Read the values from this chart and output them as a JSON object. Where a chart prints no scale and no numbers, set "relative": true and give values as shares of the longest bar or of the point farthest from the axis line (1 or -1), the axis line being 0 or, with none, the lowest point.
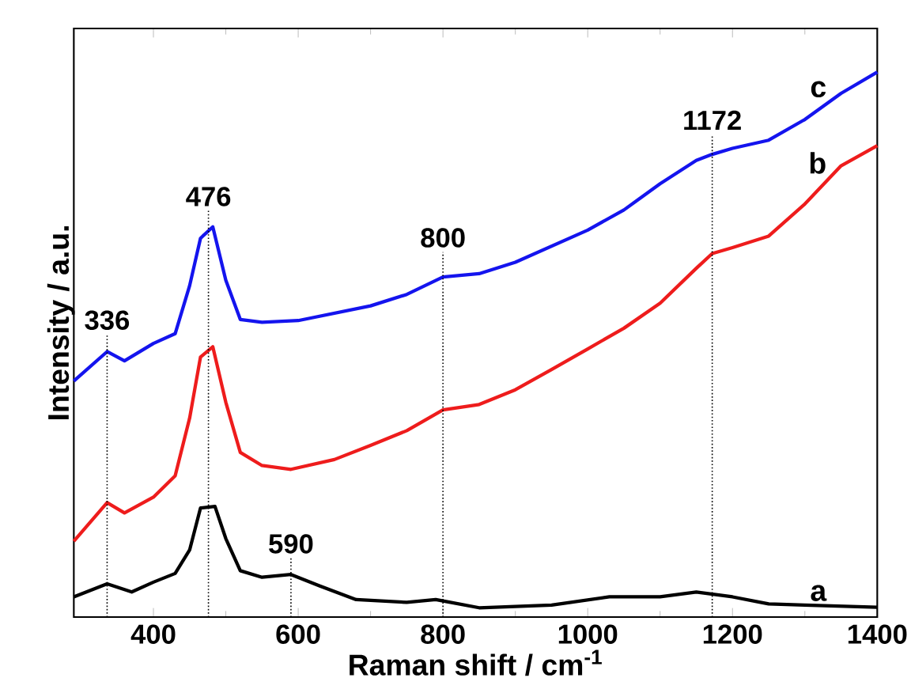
{
  "chart_data": {
    "type": "line",
    "xlabel": "Raman shift / cm$^{-1}$",
    "ylabel": "Intensity / a.u.",
    "relative": true,
    "xlim": [
      290,
      1400
    ],
    "xticks": [
      400,
      600,
      800,
      1000,
      1200,
      1400
    ],
    "series": [
      {
        "name": "a",
        "color": "#000000",
        "x": [
          290,
          336,
          370,
          400,
          430,
          450,
          465,
          485,
          500,
          520,
          550,
          590,
          630,
          680,
          750,
          790,
          850,
          950,
          1030,
          1100,
          1150,
          1200,
          1250,
          1300,
          1400
        ],
        "values": [
          0.037,
          0.061,
          0.046,
          0.064,
          0.08,
          0.123,
          0.2,
          0.203,
          0.144,
          0.085,
          0.073,
          0.078,
          0.057,
          0.032,
          0.027,
          0.032,
          0.017,
          0.022,
          0.037,
          0.037,
          0.046,
          0.037,
          0.024,
          0.022,
          0.018
        ]
      },
      {
        "name": "b",
        "color": "#ee1c1c",
        "x": [
          290,
          336,
          360,
          400,
          430,
          450,
          465,
          482,
          500,
          520,
          550,
          590,
          650,
          700,
          750,
          800,
          850,
          900,
          950,
          1000,
          1050,
          1100,
          1150,
          1172,
          1200,
          1250,
          1300,
          1350,
          1400
        ],
        "values": [
          0.139,
          0.21,
          0.191,
          0.22,
          0.259,
          0.365,
          0.477,
          0.496,
          0.394,
          0.302,
          0.278,
          0.271,
          0.289,
          0.315,
          0.342,
          0.38,
          0.39,
          0.417,
          0.454,
          0.492,
          0.53,
          0.576,
          0.64,
          0.667,
          0.678,
          0.699,
          0.758,
          0.828,
          0.865
        ]
      },
      {
        "name": "c",
        "color": "#1414ee",
        "x": [
          290,
          336,
          360,
          400,
          430,
          450,
          465,
          482,
          500,
          520,
          550,
          600,
          700,
          750,
          800,
          850,
          900,
          1000,
          1050,
          1100,
          1150,
          1172,
          1200,
          1250,
          1300,
          1350,
          1400
        ],
        "values": [
          0.433,
          0.487,
          0.47,
          0.502,
          0.52,
          0.608,
          0.695,
          0.716,
          0.618,
          0.546,
          0.541,
          0.544,
          0.571,
          0.592,
          0.624,
          0.63,
          0.651,
          0.71,
          0.747,
          0.795,
          0.838,
          0.849,
          0.86,
          0.875,
          0.913,
          0.961,
          1.0
        ]
      }
    ],
    "ref_lines": [
      {
        "axis": "x",
        "value": 336,
        "label": "336",
        "line_style": "dotted"
      },
      {
        "axis": "x",
        "value": 476,
        "label": "476",
        "line_style": "dotted"
      },
      {
        "axis": "x",
        "value": 590,
        "label": "590",
        "line_style": "dotted"
      },
      {
        "axis": "x",
        "value": 800,
        "label": "800",
        "line_style": "dotted"
      },
      {
        "axis": "x",
        "value": 1172,
        "label": "1172",
        "line_style": "dotted"
      }
    ]
  }
}
